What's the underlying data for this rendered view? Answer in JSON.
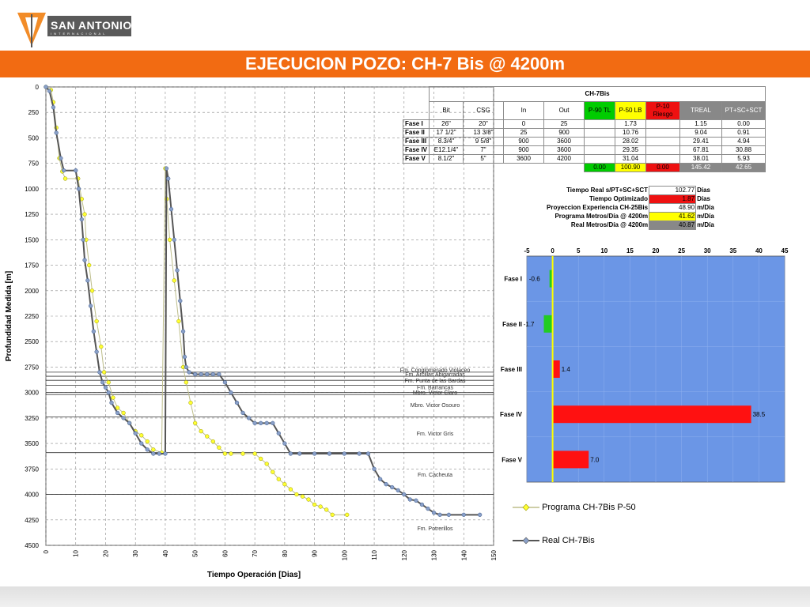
{
  "brand": {
    "name": "SAN ANTONIO",
    "tagline": "INTERNACIONAL"
  },
  "title": "EJECUCION POZO: CH-7 Bis @ 4200m",
  "table": {
    "title": "CH-7Bis",
    "headers": [
      "Bit",
      "CSG",
      "In",
      "Out",
      "P-90 TL",
      "P-50 LB",
      "P-10 Riesgo",
      "TREAL",
      "PT+SC+SCT"
    ],
    "header_colors": {
      "p90": "#00cc00",
      "p50": "#ffff00",
      "p10": "#ee1111",
      "treal": "#888888",
      "pt": "#888888"
    },
    "rows": [
      {
        "label": "Fase I",
        "cells": [
          "26\"",
          "20\"",
          "0",
          "25",
          "",
          "1.73",
          "",
          "1.15",
          "0.00"
        ]
      },
      {
        "label": "Fase II",
        "cells": [
          "17 1/2\"",
          "13 3/8\"",
          "25",
          "900",
          "",
          "10.76",
          "",
          "9.04",
          "0.91"
        ]
      },
      {
        "label": "Fase III",
        "cells": [
          "8.3/4\"",
          "9 5/8\"",
          "900",
          "3600",
          "",
          "28.02",
          "",
          "29.41",
          "4.94"
        ]
      },
      {
        "label": "Fase IV",
        "cells": [
          "E12.1/4\"",
          "7\"",
          "900",
          "3600",
          "",
          "29.35",
          "",
          "67.81",
          "30.88"
        ]
      },
      {
        "label": "Fase V",
        "cells": [
          "8.1/2\"",
          "5\"",
          "3600",
          "4200",
          "",
          "31.04",
          "",
          "38.01",
          "5.93"
        ]
      }
    ],
    "totals": [
      "0.00",
      "100.90",
      "0.00",
      "145.42",
      "42.65"
    ]
  },
  "summary": [
    {
      "label": "Tiempo Real s/PT+SC+SCT",
      "value": "102.77",
      "unit": "Días",
      "color": "#ffffff"
    },
    {
      "label": "Tiempo Optimizado",
      "value": "1.87",
      "unit": "Días",
      "color": "#ee1111"
    },
    {
      "label": "Proyeccion Experiencia CH-25Bis",
      "value": "48.90",
      "unit": "m/Día",
      "color": "#ffffff"
    },
    {
      "label": "Programa Metros/Día @ 4200m",
      "value": "41.62",
      "unit": "m/Día",
      "color": "#ffff00"
    },
    {
      "label": "Real Metros/Día @ 4200m",
      "value": "40.87",
      "unit": "m/Día",
      "color": "#888888"
    }
  ],
  "legend": {
    "program": "Programa CH-7Bis P-50",
    "real": "Real CH-7Bis"
  },
  "chart_data": [
    {
      "type": "line",
      "title": "",
      "xlabel": "Tiempo Operación [Dias]",
      "ylabel": "Profundidad Medida [m]",
      "xlim": [
        0,
        150
      ],
      "ylim": [
        4500,
        0
      ],
      "xticks": [
        0,
        10,
        20,
        30,
        40,
        50,
        60,
        70,
        80,
        90,
        100,
        110,
        120,
        130,
        140,
        150
      ],
      "yticks": [
        0,
        250,
        500,
        750,
        1000,
        1250,
        1500,
        1750,
        2000,
        2250,
        2500,
        2750,
        3000,
        3250,
        3500,
        3750,
        4000,
        4250,
        4500
      ],
      "grid": true,
      "formations": [
        {
          "name": "Fm. Conglomerado Violaceo",
          "depth": 2800
        },
        {
          "name": "Fm. Arcillas Abigarradas",
          "depth": 2840
        },
        {
          "name": "Fm. Punta de las Bardas",
          "depth": 2880
        },
        {
          "name": "Fm. Barrancas",
          "depth": 2930
        },
        {
          "name": "Mbro. Victor Claro",
          "depth": 3000
        },
        {
          "name": "Mbro. Victor Osouro",
          "depth": 3020
        },
        {
          "name": "Fm. Victor Gris",
          "depth": 3240
        },
        {
          "name": "Fm. Cacheuta",
          "depth": 3590
        },
        {
          "name": "Fm. Potrerillos",
          "depth": 4000
        }
      ],
      "series": [
        {
          "name": "Programa CH-7Bis P-50",
          "color": "#e8e800",
          "x": [
            0,
            1.7,
            2.5,
            3.5,
            4.5,
            5.5,
            6.5,
            10.8,
            12,
            13,
            13.5,
            14.5,
            15.5,
            17,
            18.5,
            19.5,
            21,
            22.5,
            24,
            26,
            28,
            30,
            32,
            34,
            36,
            38.8,
            40,
            40.5,
            41.5,
            43,
            44.5,
            46,
            47,
            48.5,
            50,
            52,
            54,
            56,
            58,
            60,
            62,
            66,
            70,
            72,
            74,
            76,
            78,
            80,
            82,
            84,
            86,
            88,
            90,
            92,
            94,
            96,
            100.9
          ],
          "y": [
            0,
            30,
            150,
            400,
            700,
            830,
            900,
            900,
            1100,
            1250,
            1500,
            1750,
            2000,
            2300,
            2550,
            2800,
            2900,
            3050,
            3150,
            3200,
            3300,
            3380,
            3420,
            3480,
            3560,
            3590,
            800,
            1100,
            1500,
            1900,
            2300,
            2750,
            2900,
            3100,
            3300,
            3380,
            3430,
            3480,
            3540,
            3600,
            3600,
            3600,
            3600,
            3650,
            3700,
            3780,
            3850,
            3900,
            3950,
            4000,
            4020,
            4050,
            4100,
            4120,
            4150,
            4200,
            4200
          ]
        },
        {
          "name": "Real CH-7Bis",
          "color": "#8aa0c8",
          "x": [
            0,
            1.2,
            2.5,
            3.5,
            5,
            6,
            10,
            11,
            12,
            12.5,
            13,
            14,
            15,
            16,
            17,
            18,
            19,
            20,
            21,
            22,
            24,
            26,
            28,
            30,
            32,
            34,
            36,
            38,
            40,
            40.4,
            41,
            42,
            43,
            44,
            45,
            46,
            46.5,
            47,
            48,
            50,
            52,
            54,
            56,
            58,
            60,
            62,
            64,
            66,
            68,
            70,
            72,
            74,
            76,
            78,
            80,
            82,
            85,
            90,
            95,
            100,
            105,
            108,
            110,
            112,
            114,
            116,
            118,
            120,
            122,
            124,
            126,
            128,
            130,
            132,
            135,
            140,
            145.4
          ],
          "y": [
            0,
            40,
            200,
            450,
            700,
            820,
            820,
            1000,
            1300,
            1500,
            1700,
            1900,
            2150,
            2400,
            2600,
            2800,
            2900,
            2950,
            3000,
            3100,
            3200,
            3250,
            3300,
            3400,
            3500,
            3560,
            3600,
            3600,
            3600,
            800,
            900,
            1200,
            1500,
            1800,
            2100,
            2400,
            2650,
            2750,
            2800,
            2820,
            2820,
            2820,
            2820,
            2820,
            2900,
            3000,
            3100,
            3200,
            3250,
            3300,
            3300,
            3300,
            3300,
            3400,
            3500,
            3600,
            3600,
            3600,
            3600,
            3600,
            3600,
            3600,
            3750,
            3850,
            3900,
            3930,
            3960,
            4000,
            4050,
            4060,
            4100,
            4140,
            4180,
            4200,
            4200,
            4200,
            4200
          ]
        }
      ]
    },
    {
      "type": "bar",
      "orientation": "horizontal",
      "categories": [
        "Fase I",
        "Fase II",
        "Fase III",
        "Fase IV",
        "Fase V"
      ],
      "values": [
        -0.6,
        -1.7,
        1.4,
        38.5,
        7.0
      ],
      "value_labels": [
        "-0.6",
        "-1.7",
        "1.4",
        "38.5",
        "7.0"
      ],
      "xlim": [
        -5,
        45
      ],
      "xticks": [
        -5,
        0,
        5,
        10,
        15,
        20,
        25,
        30,
        35,
        40,
        45
      ],
      "bar_colors": {
        "negative": "#22cc22",
        "positive": "#ff1111"
      },
      "background": "#6b96e6",
      "grid": true
    }
  ]
}
